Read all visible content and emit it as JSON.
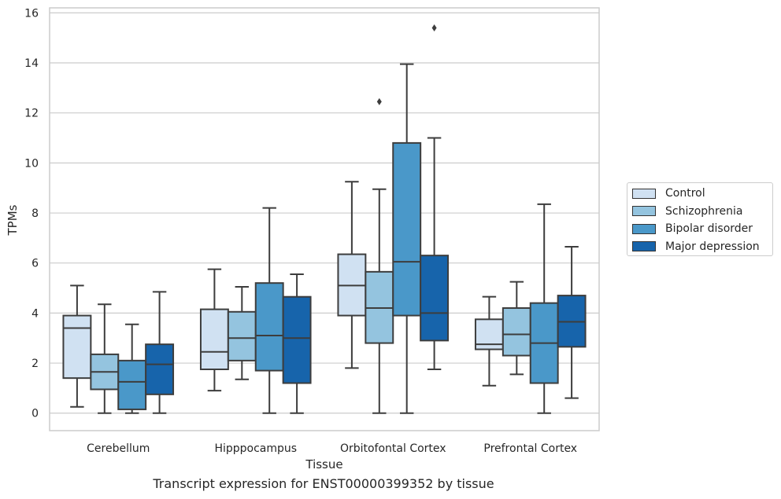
{
  "chart_data": {
    "type": "box",
    "title": "",
    "caption": "Transcript expression for ENST00000399352 by tissue",
    "xlabel": "Tissue",
    "ylabel": "TPMs",
    "ylim": [
      -0.7,
      16.2
    ],
    "yticks": [
      "0",
      "2",
      "4",
      "6",
      "8",
      "10",
      "12",
      "14",
      "16"
    ],
    "grid": "horizontal",
    "legend_position": "right",
    "categories": [
      "Cerebellum",
      "Hipppocampus",
      "Orbitofontal Cortex",
      "Prefrontal Cortex"
    ],
    "series": [
      {
        "name": "Control",
        "color": "#d0e1f2",
        "boxes": [
          {
            "whisker_low": 0.25,
            "q1": 1.4,
            "median": 3.4,
            "q3": 3.9,
            "whisker_high": 5.1,
            "outliers": []
          },
          {
            "whisker_low": 0.9,
            "q1": 1.75,
            "median": 2.45,
            "q3": 4.15,
            "whisker_high": 5.75,
            "outliers": []
          },
          {
            "whisker_low": 1.8,
            "q1": 3.9,
            "median": 5.1,
            "q3": 6.35,
            "whisker_high": 9.25,
            "outliers": []
          },
          {
            "whisker_low": 1.1,
            "q1": 2.55,
            "median": 2.75,
            "q3": 3.75,
            "whisker_high": 4.65,
            "outliers": []
          }
        ]
      },
      {
        "name": "Schizophrenia",
        "color": "#94c4df",
        "boxes": [
          {
            "whisker_low": 0.0,
            "q1": 0.95,
            "median": 1.65,
            "q3": 2.35,
            "whisker_high": 4.35,
            "outliers": []
          },
          {
            "whisker_low": 1.35,
            "q1": 2.1,
            "median": 3.0,
            "q3": 4.05,
            "whisker_high": 5.05,
            "outliers": []
          },
          {
            "whisker_low": 0.0,
            "q1": 2.8,
            "median": 4.2,
            "q3": 5.65,
            "whisker_high": 8.95,
            "outliers": [
              12.45
            ]
          },
          {
            "whisker_low": 1.55,
            "q1": 2.3,
            "median": 3.15,
            "q3": 4.2,
            "whisker_high": 5.25,
            "outliers": []
          }
        ]
      },
      {
        "name": "Bipolar disorder",
        "color": "#4a98c9",
        "boxes": [
          {
            "whisker_low": 0.0,
            "q1": 0.15,
            "median": 1.25,
            "q3": 2.1,
            "whisker_high": 3.55,
            "outliers": []
          },
          {
            "whisker_low": 0.0,
            "q1": 1.7,
            "median": 3.1,
            "q3": 5.2,
            "whisker_high": 8.2,
            "outliers": []
          },
          {
            "whisker_low": 0.0,
            "q1": 3.9,
            "median": 6.05,
            "q3": 10.8,
            "whisker_high": 13.95,
            "outliers": []
          },
          {
            "whisker_low": 0.0,
            "q1": 1.2,
            "median": 2.8,
            "q3": 4.4,
            "whisker_high": 8.35,
            "outliers": []
          }
        ]
      },
      {
        "name": "Major depression",
        "color": "#1764ab",
        "boxes": [
          {
            "whisker_low": 0.0,
            "q1": 0.75,
            "median": 1.95,
            "q3": 2.75,
            "whisker_high": 4.85,
            "outliers": []
          },
          {
            "whisker_low": 0.0,
            "q1": 1.2,
            "median": 3.0,
            "q3": 4.65,
            "whisker_high": 5.55,
            "outliers": []
          },
          {
            "whisker_low": 1.75,
            "q1": 2.9,
            "median": 4.0,
            "q3": 6.3,
            "whisker_high": 11.0,
            "outliers": [
              15.4
            ]
          },
          {
            "whisker_low": 0.6,
            "q1": 2.65,
            "median": 3.65,
            "q3": 4.7,
            "whisker_high": 6.65,
            "outliers": []
          }
        ]
      }
    ]
  }
}
